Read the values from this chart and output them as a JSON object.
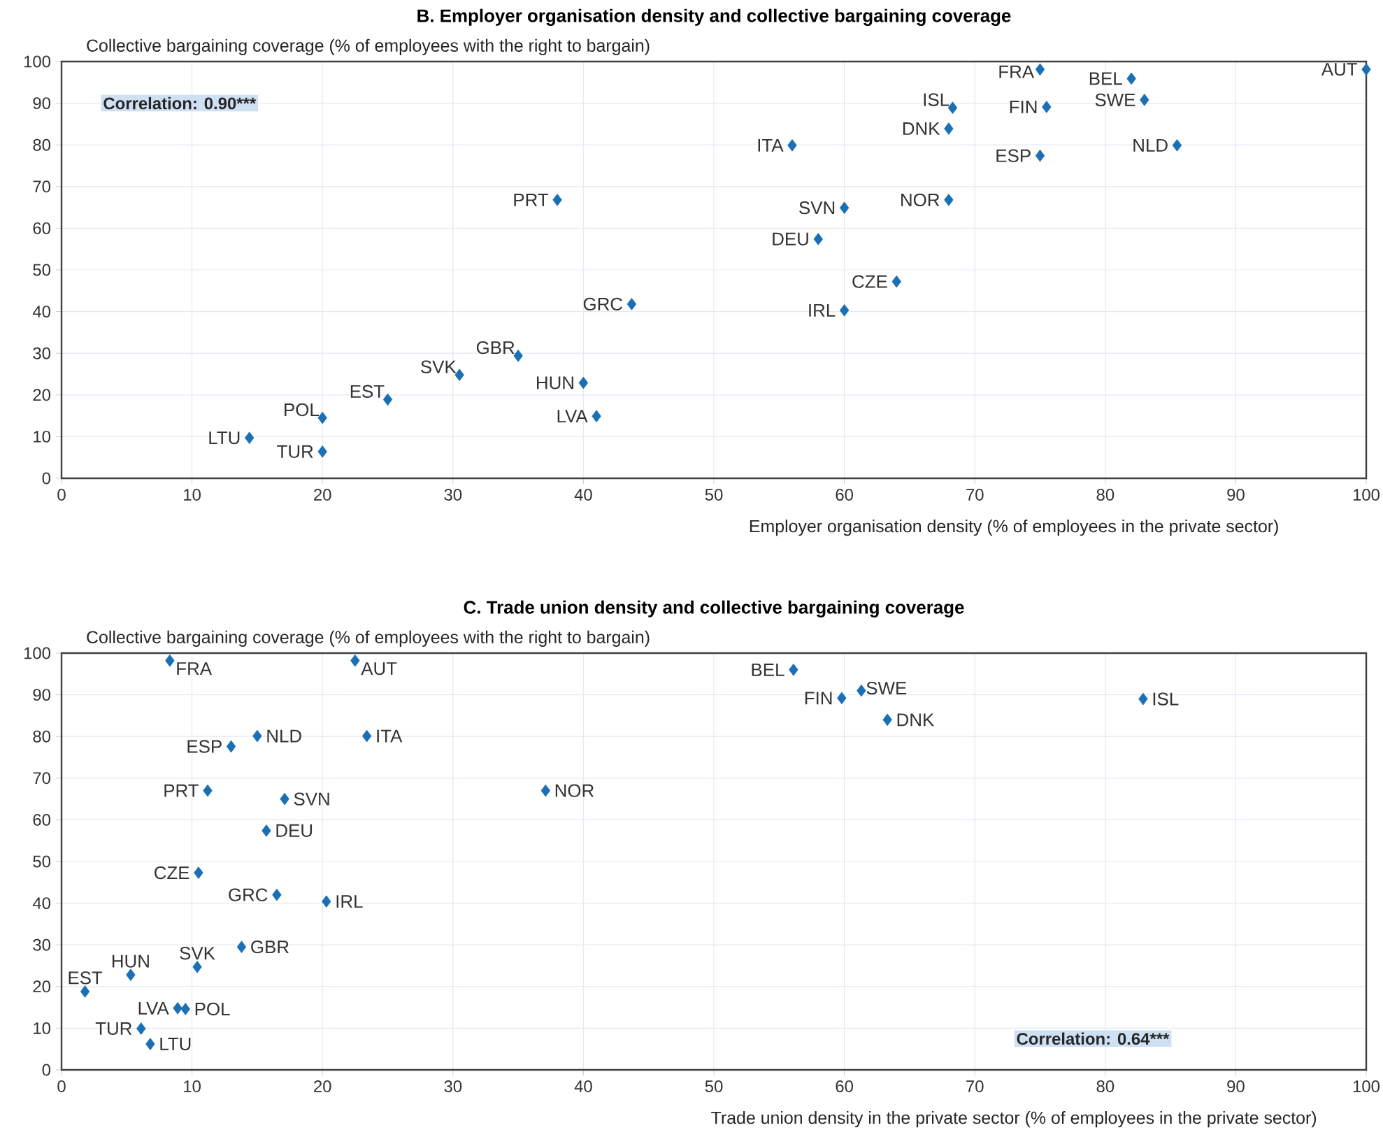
{
  "chart_data": [
    {
      "type": "scatter",
      "title": "B. Employer organisation density and collective bargaining coverage",
      "ylabel": "Collective bargaining coverage (% of employees with the right to bargain)",
      "xlabel": "Employer organisation density (% of employees in the private sector)",
      "xlim": [
        0,
        100
      ],
      "ylim": [
        0,
        100
      ],
      "xticks": [
        0,
        10,
        20,
        30,
        40,
        50,
        60,
        70,
        80,
        90,
        100
      ],
      "yticks": [
        0,
        10,
        20,
        30,
        40,
        50,
        60,
        70,
        80,
        90,
        100
      ],
      "grid": true,
      "marker": "diamond",
      "series": [
        {
          "color": "#1a6fb5",
          "x": [
            14.4,
            20,
            20,
            25,
            30.5,
            35,
            40,
            41,
            43.7,
            38,
            56,
            68.3,
            68,
            75,
            75.5,
            82,
            83,
            100,
            85.5,
            75,
            68,
            60,
            58,
            64,
            60
          ],
          "values": [
            9.7,
            6.4,
            14.5,
            18.9,
            24.8,
            29.4,
            22.9,
            14.9,
            41.8,
            66.8,
            79.9,
            88.9,
            83.9,
            98.1,
            89.1,
            95.9,
            90.8,
            98.1,
            79.9,
            77.4,
            66.8,
            64.9,
            57.4,
            47.2,
            40.3
          ]
        }
      ],
      "annotations": [
        {
          "text": "LTU",
          "x": 14.4,
          "y": 9.7
        },
        {
          "text": "TUR",
          "x": 20,
          "y": 6.4
        },
        {
          "text": "POL",
          "x": 20,
          "y": 14.5
        },
        {
          "text": "EST",
          "x": 25,
          "y": 18.9
        },
        {
          "text": "SVK",
          "x": 30.5,
          "y": 24.8
        },
        {
          "text": "GBR",
          "x": 35,
          "y": 29.4
        },
        {
          "text": "HUN",
          "x": 40,
          "y": 22.9
        },
        {
          "text": "LVA",
          "x": 41,
          "y": 14.9
        },
        {
          "text": "GRC",
          "x": 43.7,
          "y": 41.8
        },
        {
          "text": "PRT",
          "x": 38,
          "y": 66.8
        },
        {
          "text": "ITA",
          "x": 56,
          "y": 79.9
        },
        {
          "text": "ISL",
          "x": 68.3,
          "y": 88.9
        },
        {
          "text": "DNK",
          "x": 68,
          "y": 83.9
        },
        {
          "text": "FRA",
          "x": 75,
          "y": 98.1
        },
        {
          "text": "FIN",
          "x": 75.5,
          "y": 89.1
        },
        {
          "text": "BEL",
          "x": 82,
          "y": 95.9
        },
        {
          "text": "SWE",
          "x": 83,
          "y": 90.8
        },
        {
          "text": "AUT",
          "x": 100,
          "y": 98.1
        },
        {
          "text": "NLD",
          "x": 85.5,
          "y": 79.9
        },
        {
          "text": "ESP",
          "x": 75,
          "y": 77.4
        },
        {
          "text": "NOR",
          "x": 68,
          "y": 66.8
        },
        {
          "text": "SVN",
          "x": 60,
          "y": 64.9
        },
        {
          "text": "DEU",
          "x": 58,
          "y": 57.4
        },
        {
          "text": "CZE",
          "x": 64,
          "y": 47.2
        },
        {
          "text": "IRL",
          "x": 60,
          "y": 40.3
        },
        "Correlation: 0.90***"
      ]
    },
    {
      "type": "scatter",
      "title": "C. Trade union density and collective bargaining coverage",
      "ylabel": "Collective bargaining coverage (% of employees with the right to bargain)",
      "xlabel": "Trade union density in the private sector (% of employees in the private sector)",
      "xlim": [
        0,
        100
      ],
      "ylim": [
        0,
        100
      ],
      "xticks": [
        0,
        10,
        20,
        30,
        40,
        50,
        60,
        70,
        80,
        90,
        100
      ],
      "yticks": [
        0,
        10,
        20,
        30,
        40,
        50,
        60,
        70,
        80,
        90,
        100
      ],
      "grid": true,
      "marker": "diamond",
      "series": [
        {
          "color": "#1a6fb5",
          "x": [
            8.3,
            22.5,
            15,
            13,
            23.4,
            11.2,
            17.1,
            37.1,
            15.7,
            10.5,
            16.5,
            20.3,
            10.4,
            13.8,
            5.3,
            1.8,
            8.9,
            9.5,
            6.1,
            6.8,
            56.1,
            59.8,
            61.3,
            63.3,
            82.9
          ],
          "values": [
            98.2,
            98.2,
            80.1,
            77.6,
            80.1,
            67,
            65,
            67,
            57.4,
            47.3,
            42,
            40.4,
            24.7,
            29.5,
            22.8,
            18.8,
            14.8,
            14.6,
            9.9,
            6.2,
            96,
            89.2,
            91,
            84,
            89
          ]
        }
      ],
      "annotations": [
        {
          "text": "FRA",
          "x": 8.3,
          "y": 98.2
        },
        {
          "text": "AUT",
          "x": 22.5,
          "y": 98.2
        },
        {
          "text": "NLD",
          "x": 15,
          "y": 80.1
        },
        {
          "text": "ESP",
          "x": 13,
          "y": 77.6
        },
        {
          "text": "ITA",
          "x": 23.4,
          "y": 80.1
        },
        {
          "text": "PRT",
          "x": 11.2,
          "y": 67
        },
        {
          "text": "SVN",
          "x": 17.1,
          "y": 65
        },
        {
          "text": "NOR",
          "x": 37.1,
          "y": 67
        },
        {
          "text": "DEU",
          "x": 15.7,
          "y": 57.4
        },
        {
          "text": "CZE",
          "x": 10.5,
          "y": 47.3
        },
        {
          "text": "GRC",
          "x": 16.5,
          "y": 42
        },
        {
          "text": "IRL",
          "x": 20.3,
          "y": 40.4
        },
        {
          "text": "SVK",
          "x": 10.4,
          "y": 24.7
        },
        {
          "text": "GBR",
          "x": 13.8,
          "y": 29.5
        },
        {
          "text": "HUN",
          "x": 5.3,
          "y": 22.8
        },
        {
          "text": "EST",
          "x": 1.8,
          "y": 18.8
        },
        {
          "text": "LVA",
          "x": 8.9,
          "y": 14.8
        },
        {
          "text": "POL",
          "x": 9.5,
          "y": 14.6
        },
        {
          "text": "TUR",
          "x": 6.1,
          "y": 9.9
        },
        {
          "text": "LTU",
          "x": 6.8,
          "y": 6.2
        },
        {
          "text": "BEL",
          "x": 56.1,
          "y": 96
        },
        {
          "text": "FIN",
          "x": 59.8,
          "y": 89.2
        },
        {
          "text": "SWE",
          "x": 61.3,
          "y": 91
        },
        {
          "text": "DNK",
          "x": 63.3,
          "y": 84
        },
        {
          "text": "ISL",
          "x": 82.9,
          "y": 89
        },
        "Correlation: 0.64***"
      ]
    }
  ]
}
